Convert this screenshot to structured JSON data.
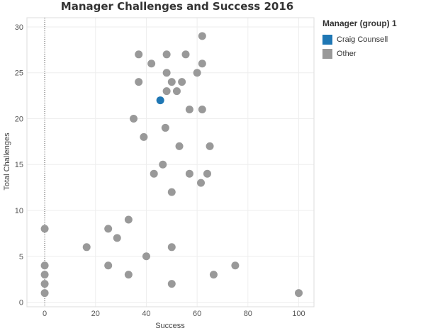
{
  "chart_data": {
    "type": "scatter",
    "title": "Manager Challenges and Success 2016",
    "xlabel": "Success",
    "ylabel": "Total Challenges",
    "xlim": [
      -7,
      106
    ],
    "ylim": [
      -0.5,
      31
    ],
    "xticks": [
      0,
      20,
      40,
      60,
      80,
      100
    ],
    "yticks": [
      0,
      5,
      10,
      15,
      20,
      25,
      30
    ],
    "grid": true,
    "zero_reference_line": true,
    "legend": {
      "title": "Manager (group) 1",
      "position": "right",
      "entries": [
        {
          "label": "Craig Counsell",
          "color": "#1f77b4"
        },
        {
          "label": "Other",
          "color": "#999999"
        }
      ]
    },
    "series": [
      {
        "name": "Craig Counsell",
        "color": "#1f77b4",
        "points": [
          [
            45.5,
            22
          ]
        ]
      },
      {
        "name": "Other",
        "color": "#999999",
        "points": [
          [
            62,
            29
          ],
          [
            37,
            27
          ],
          [
            48,
            27
          ],
          [
            55.5,
            27
          ],
          [
            42,
            26
          ],
          [
            62,
            26
          ],
          [
            48,
            25
          ],
          [
            60,
            25
          ],
          [
            37,
            24
          ],
          [
            50,
            24
          ],
          [
            54,
            24
          ],
          [
            48,
            23
          ],
          [
            52,
            23
          ],
          [
            57,
            21
          ],
          [
            62,
            21
          ],
          [
            35,
            20
          ],
          [
            47.5,
            19
          ],
          [
            39,
            18
          ],
          [
            53,
            17
          ],
          [
            65,
            17
          ],
          [
            46.5,
            15
          ],
          [
            43,
            14
          ],
          [
            57,
            14
          ],
          [
            64,
            14
          ],
          [
            61.5,
            13
          ],
          [
            50,
            12
          ],
          [
            33,
            9
          ],
          [
            0,
            8
          ],
          [
            25,
            8
          ],
          [
            28.5,
            7
          ],
          [
            16.5,
            6
          ],
          [
            50,
            6
          ],
          [
            40,
            5
          ],
          [
            0,
            4
          ],
          [
            25,
            4
          ],
          [
            75,
            4
          ],
          [
            0,
            3
          ],
          [
            33,
            3
          ],
          [
            66.5,
            3
          ],
          [
            0,
            2
          ],
          [
            50,
            2
          ],
          [
            0,
            1
          ],
          [
            100,
            1
          ]
        ]
      }
    ]
  }
}
